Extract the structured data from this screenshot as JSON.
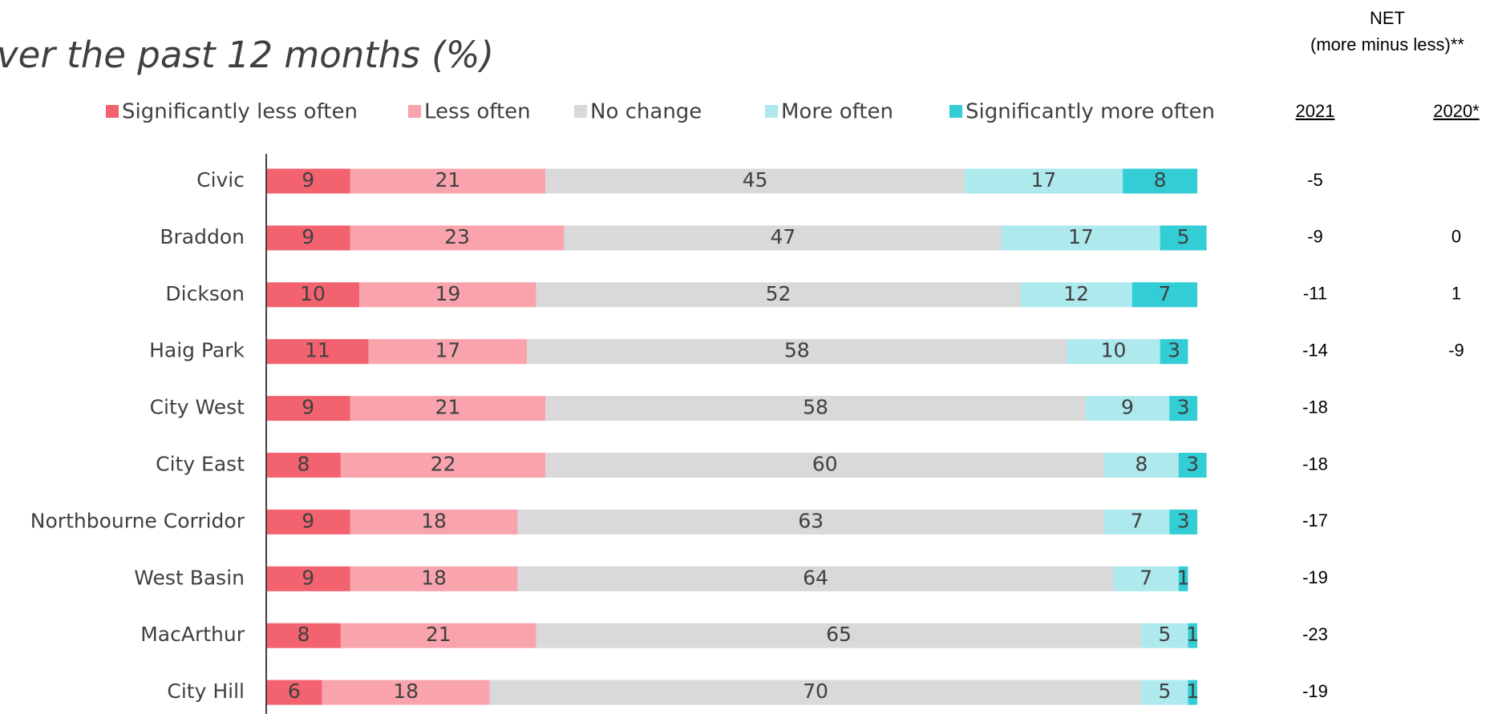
{
  "chart_data": {
    "type": "stacked-bar-horizontal",
    "title": "ver the past 12 months (%)",
    "categories": [
      "Civic",
      "Braddon",
      "Dickson",
      "Haig Park",
      "City West",
      "City East",
      "Northbourne Corridor",
      "West Basin",
      "MacArthur",
      "City Hill"
    ],
    "series": [
      {
        "name": "Significantly less often",
        "color": "#f2636f",
        "values": [
          9,
          9,
          10,
          11,
          9,
          8,
          9,
          9,
          8,
          6
        ]
      },
      {
        "name": "Less often",
        "color": "#f9a4ad",
        "values": [
          21,
          23,
          19,
          17,
          21,
          22,
          18,
          18,
          21,
          18
        ]
      },
      {
        "name": "No change",
        "color": "#d9d9d9",
        "values": [
          45,
          47,
          52,
          58,
          58,
          60,
          63,
          64,
          65,
          70
        ]
      },
      {
        "name": "More often",
        "color": "#aee9ee",
        "values": [
          17,
          17,
          12,
          10,
          9,
          8,
          7,
          7,
          5,
          5
        ]
      },
      {
        "name": "Significantly more often",
        "color": "#33cdd6",
        "values": [
          8,
          5,
          7,
          3,
          3,
          3,
          3,
          1,
          1,
          1
        ]
      }
    ],
    "xlim": [
      0,
      100
    ],
    "net": {
      "title": "NET",
      "subtitle": "(more minus less)**",
      "columns": [
        {
          "name": "2021",
          "values": [
            -5,
            -9,
            -11,
            -14,
            -18,
            -18,
            -17,
            -19,
            -23,
            -19
          ]
        },
        {
          "name": "2020*",
          "values": [
            null,
            0,
            1,
            -9,
            null,
            null,
            null,
            null,
            null,
            null
          ]
        }
      ]
    }
  }
}
